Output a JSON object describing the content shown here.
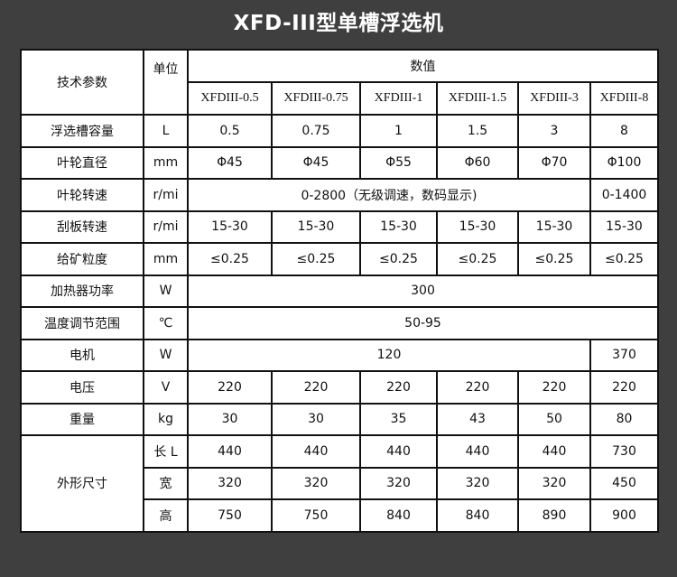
{
  "title": "XFD-III型单槽浮选机",
  "header": {
    "param": "技术参数",
    "unit": "单位",
    "value": "数值",
    "models": [
      "XFDIII-0.5",
      "XFDIII-0.75",
      "XFDIII-1",
      "XFDIII-1.5",
      "XFDIII-3",
      "XFDIII-8"
    ]
  },
  "rows": [
    {
      "param": "浮选槽容量",
      "unit": "L",
      "values": [
        "0.5",
        "0.75",
        "1",
        "1.5",
        "3",
        "8"
      ]
    },
    {
      "param": "叶轮直径",
      "unit": "mm",
      "values": [
        "Φ45",
        "Φ45",
        "Φ55",
        "Φ60",
        "Φ70",
        "Φ100"
      ]
    },
    {
      "param": "叶轮转速",
      "unit": "r/mi",
      "merged": "0-2800（无级调速，数码显示)",
      "last": "0-1400"
    },
    {
      "param": "刮板转速",
      "unit": "r/mi",
      "values": [
        "15-30",
        "15-30",
        "15-30",
        "15-30",
        "15-30",
        "15-30"
      ]
    },
    {
      "param": "给矿粒度",
      "unit": "mm",
      "values": [
        "≤0.25",
        "≤0.25",
        "≤0.25",
        "≤0.25",
        "≤0.25",
        "≤0.25"
      ]
    },
    {
      "param": "加热器功率",
      "unit": "W",
      "merged": "300"
    },
    {
      "param": "温度调节范围",
      "unit": "℃",
      "merged": "50-95"
    },
    {
      "param": "电机",
      "unit": "W",
      "merged": "120",
      "last": "370"
    },
    {
      "param": "电压",
      "unit": "V",
      "values": [
        "220",
        "220",
        "220",
        "220",
        "220",
        "220"
      ]
    },
    {
      "param": "重量",
      "unit": "kg",
      "values": [
        "30",
        "30",
        "35",
        "43",
        "50",
        "80"
      ]
    }
  ],
  "dimensions": {
    "param": "外形尺寸",
    "rows": [
      {
        "unit": "长 L",
        "values": [
          "440",
          "440",
          "440",
          "440",
          "440",
          "730"
        ]
      },
      {
        "unit": "宽",
        "values": [
          "320",
          "320",
          "320",
          "320",
          "320",
          "450"
        ]
      },
      {
        "unit": "高",
        "values": [
          "750",
          "750",
          "840",
          "840",
          "890",
          "900"
        ]
      }
    ]
  }
}
